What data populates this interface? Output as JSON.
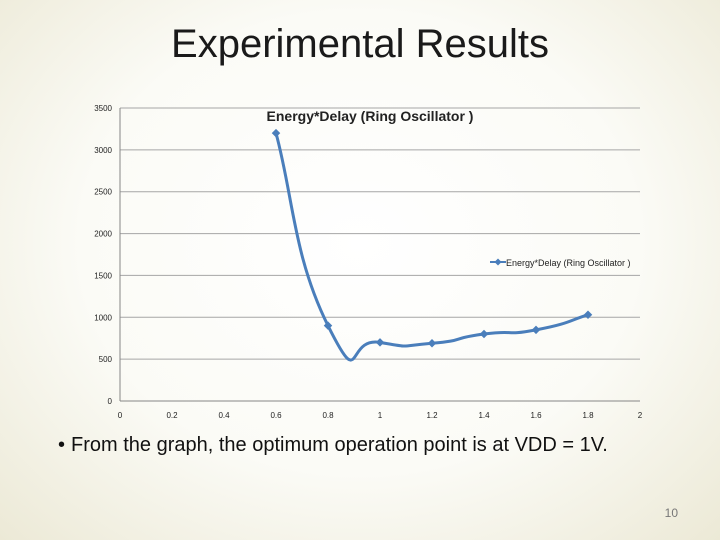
{
  "slide": {
    "title": "Experimental Results",
    "bullet_marker": "•",
    "bullet": "From the graph, the optimum operation point is at VDD = 1V.",
    "page_number": "10"
  },
  "colors": {
    "series": "#4a7ebb",
    "grid": "#a6a6a6",
    "axis": "#868686"
  },
  "chart_data": {
    "type": "scatter",
    "title": "Energy*Delay (Ring Oscillator )",
    "xlabel": "",
    "ylabel": "",
    "xlim": [
      0,
      2
    ],
    "ylim": [
      0,
      3500
    ],
    "xticks": [
      "0",
      "0.2",
      "0.4",
      "0.6",
      "0.8",
      "1",
      "1.2",
      "1.4",
      "1.6",
      "1.8",
      "2"
    ],
    "yticks": [
      "0",
      "500",
      "1000",
      "1500",
      "2000",
      "2500",
      "3000",
      "3500"
    ],
    "grid": true,
    "smooth": true,
    "legend_position": "right",
    "series": [
      {
        "name": "Energy*Delay (Ring Oscillator )",
        "x": [
          0.6,
          0.8,
          1.0,
          1.2,
          1.4,
          1.6,
          1.8
        ],
        "y": [
          3200,
          900,
          700,
          690,
          800,
          850,
          1030
        ]
      }
    ]
  }
}
